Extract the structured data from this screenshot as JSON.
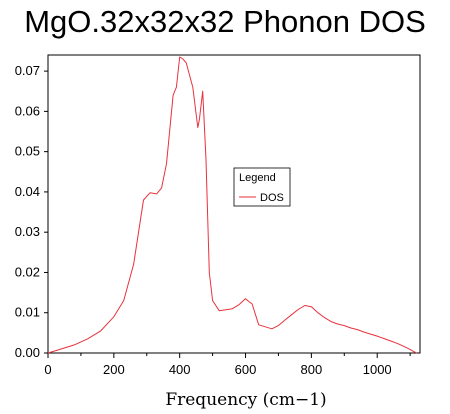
{
  "chart_data": {
    "type": "line",
    "title": "MgO.32x32x32 Phonon DOS",
    "xlabel": "Frequency (cm−1)",
    "ylabel": "",
    "xlim": [
      0,
      1130
    ],
    "ylim": [
      0,
      0.074
    ],
    "xticks": [
      0,
      200,
      400,
      600,
      800,
      1000
    ],
    "xtick_labels": [
      "0",
      "200",
      "400",
      "600",
      "800",
      "1000"
    ],
    "yticks": [
      0,
      0.01,
      0.02,
      0.03,
      0.04,
      0.05,
      0.06,
      0.07
    ],
    "ytick_labels": [
      "0.00",
      "0.01",
      "0.02",
      "0.03",
      "0.04",
      "0.05",
      "0.06",
      "0.07"
    ],
    "legend": {
      "title": "Legend",
      "position": "center-right"
    },
    "grid": false,
    "series": [
      {
        "name": "DOS",
        "color": "#e8323c",
        "x": [
          0,
          40,
          80,
          120,
          160,
          200,
          230,
          260,
          290,
          310,
          330,
          345,
          360,
          380,
          390,
          400,
          410,
          420,
          440,
          455,
          460,
          470,
          480,
          490,
          500,
          520,
          560,
          580,
          600,
          610,
          620,
          640,
          660,
          680,
          700,
          720,
          740,
          760,
          780,
          800,
          820,
          840,
          860,
          880,
          900,
          920,
          940,
          960,
          980,
          1000,
          1020,
          1040,
          1060,
          1080,
          1100,
          1110,
          1120
        ],
        "y": [
          0,
          0.001,
          0.002,
          0.0035,
          0.0055,
          0.009,
          0.013,
          0.022,
          0.038,
          0.0398,
          0.0395,
          0.041,
          0.047,
          0.064,
          0.066,
          0.0735,
          0.073,
          0.072,
          0.066,
          0.056,
          0.058,
          0.065,
          0.048,
          0.02,
          0.013,
          0.0105,
          0.011,
          0.012,
          0.0135,
          0.0128,
          0.0122,
          0.007,
          0.0065,
          0.006,
          0.0068,
          0.0082,
          0.0095,
          0.0108,
          0.0118,
          0.0115,
          0.01,
          0.0088,
          0.0078,
          0.0072,
          0.0068,
          0.0062,
          0.0058,
          0.0052,
          0.0047,
          0.0042,
          0.0036,
          0.003,
          0.0024,
          0.0017,
          0.0009,
          0.0004,
          0
        ]
      }
    ]
  }
}
